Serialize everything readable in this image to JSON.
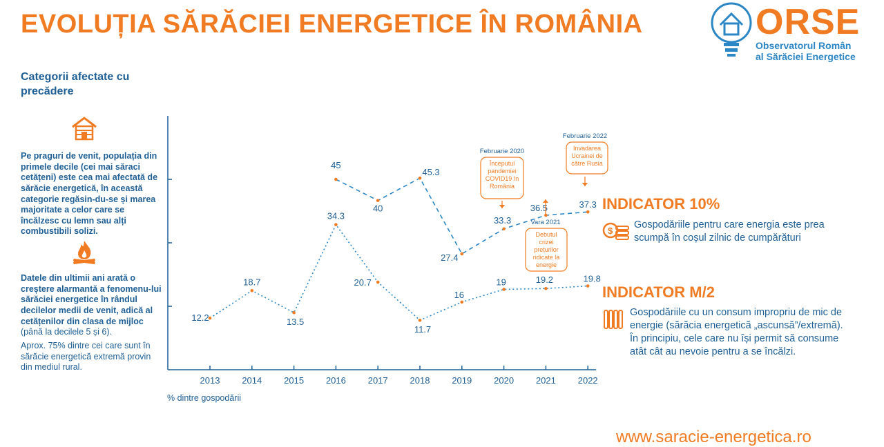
{
  "title": "EVOLUȚIA SĂRĂCIEI ENERGETICE ÎN ROMÂNIA",
  "logo": {
    "word": "ORSE",
    "line1": "Observatorul Român",
    "line2": "al Sărăciei Energetice",
    "icon": "house-bulb-icon"
  },
  "sidebar": {
    "heading": "Categorii afectate cu precădere",
    "p1": "Pe praguri de venit, populația din primele decile (cei mai săraci cetățeni) este cea mai afectată de sărăcie energetică, în această categorie regăsin-du-se și marea majoritate a celor care se încălzesc cu lemn sau alți combustibili solizi.",
    "p2_bold": "Datele din ultimii ani arată o creștere alarmantă a fenomenu-lui sărăciei energetice în rândul decilelor medii de venit, adică al cetățenilor din clasa de mijloc",
    "p2_rest": " (până la decilele 5 și 6).",
    "p3": "Aprox. 75% dintre cei care sunt în sărăcie energetică extremă provin din mediul rural.",
    "icon1": "house-icon",
    "icon2": "fire-icon"
  },
  "indicators": {
    "ind1_title": "INDICATOR 10%",
    "ind1_desc": "Gospodăriile pentru care energia este prea scumpă în coșul zilnic de cumpărături",
    "ind1_icon": "coins-icon",
    "ind2_title": "INDICATOR M/2",
    "ind2_desc": "Gospodăriile cu un consum impropriu de mic de energie (sărăcia energetică „ascunsă”/extremă). În principiu, cele care nu își permit să consume atât cât au nevoie pentru a se încălzi.",
    "ind2_icon": "radiator-icon"
  },
  "url": "www.saracie-energetica.ro",
  "colors": {
    "orange": "#f07b22",
    "blue": "#1f5f95",
    "lightblue": "#2b86c5"
  },
  "chart_data": {
    "type": "line",
    "categories": [
      "2013",
      "2014",
      "2015",
      "2016",
      "2017",
      "2018",
      "2019",
      "2020",
      "2021",
      "2022"
    ],
    "xlabel": "% dintre gospodării",
    "ylim": [
      0,
      60
    ],
    "grid": false,
    "series": [
      {
        "name": "INDICATOR 10%",
        "style": "dashed",
        "values": [
          null,
          null,
          null,
          45,
          40,
          45.3,
          27.4,
          33.3,
          36.5,
          37.3
        ]
      },
      {
        "name": "INDICATOR M/2",
        "style": "dotted",
        "values": [
          12.2,
          18.7,
          13.5,
          34.3,
          20.7,
          11.7,
          16,
          19,
          19.2,
          19.8
        ]
      }
    ],
    "annotations": [
      {
        "date": "Februarie 2020",
        "text": [
          "Începutul",
          "pandemiei",
          "COVID19 în",
          "România"
        ]
      },
      {
        "date": "Vara 2021",
        "text": [
          "Debutul",
          "crizei",
          "prețurilor",
          "ridicate la",
          "energie"
        ]
      },
      {
        "date": "Februarie 2022",
        "text": [
          "Invadarea",
          "Ucrainei de",
          "către Rusia"
        ]
      }
    ]
  }
}
